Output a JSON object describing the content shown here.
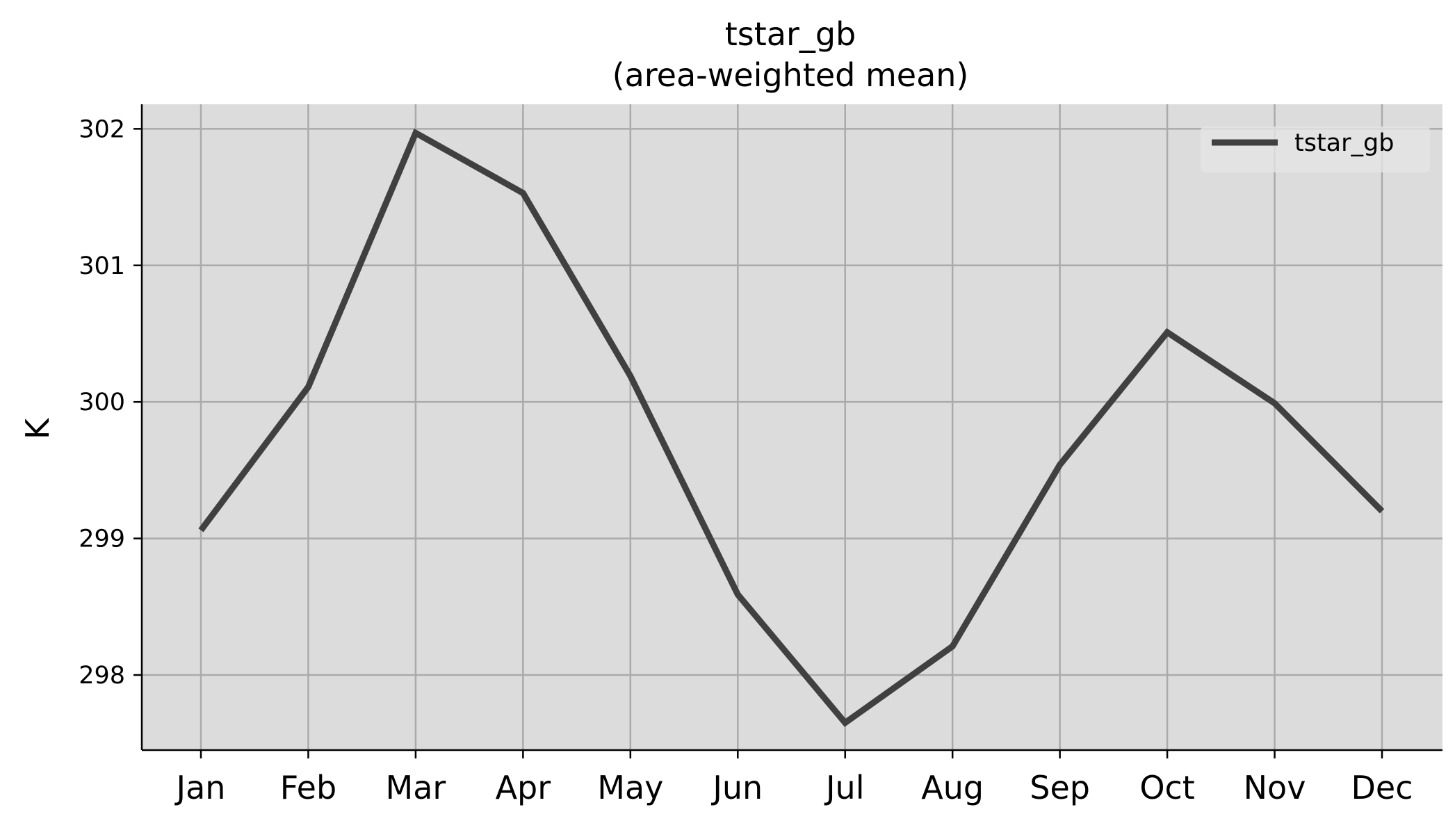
{
  "colors": {
    "plot_background": "#dcdcdc",
    "grid": "#aaaaaa",
    "line": "#404040",
    "legend_background": "#e5e5e5"
  },
  "chart_data": {
    "type": "line",
    "title": "tstar_gb",
    "subtitle": "(area-weighted mean)",
    "xlabel": "",
    "ylabel": "K",
    "categories": [
      "Jan",
      "Feb",
      "Mar",
      "Apr",
      "May",
      "Jun",
      "Jul",
      "Aug",
      "Sep",
      "Oct",
      "Nov",
      "Dec"
    ],
    "series": [
      {
        "name": "tstar_gb",
        "values": [
          299.06,
          300.11,
          301.97,
          301.53,
          300.19,
          298.59,
          297.65,
          298.21,
          299.54,
          300.51,
          299.99,
          299.2
        ]
      }
    ],
    "y_ticks": [
      "298",
      "299",
      "300",
      "301",
      "302"
    ],
    "ylim": [
      297.45,
      302.18
    ],
    "grid": true,
    "legend": "top-right"
  }
}
